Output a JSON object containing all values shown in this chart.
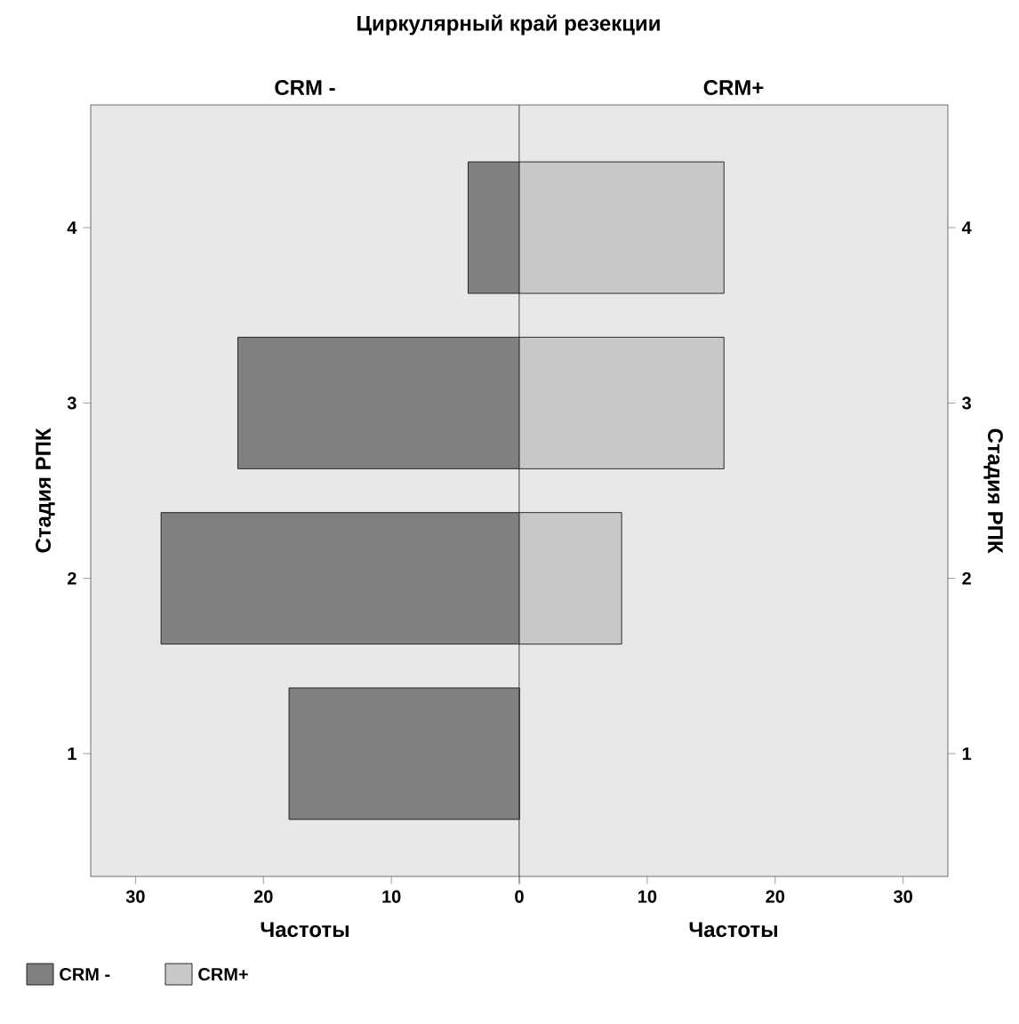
{
  "chart_data": [
    {
      "type": "bar",
      "orientation": "horizontal",
      "title": "Циркулярный край резекции",
      "subtitle": "CRM -",
      "xlabel": "Частоты",
      "ylabel": "Стадия РПК",
      "categories": [
        "4",
        "3",
        "2",
        "1"
      ],
      "xlim": [
        33.5,
        0
      ],
      "xticks": [
        30,
        20,
        10,
        0
      ],
      "legend": "bottom left",
      "series": [
        {
          "name": "CRM -",
          "color": "#808080",
          "values": [
            4,
            22,
            28,
            18
          ]
        }
      ]
    },
    {
      "type": "bar",
      "orientation": "horizontal",
      "subtitle": "CRM+",
      "xlabel": "Частоты",
      "ylabel": "Стадия РПК",
      "categories": [
        "4",
        "3",
        "2",
        "1"
      ],
      "xlim": [
        0,
        33.5
      ],
      "xticks": [
        {
          "value": 0,
          "label": null
        },
        10,
        20,
        30
      ],
      "legend": "bottom left",
      "series": [
        {
          "name": "CRM+",
          "color": "#c8c8c8",
          "values": [
            16,
            16,
            8,
            0
          ]
        }
      ]
    }
  ]
}
